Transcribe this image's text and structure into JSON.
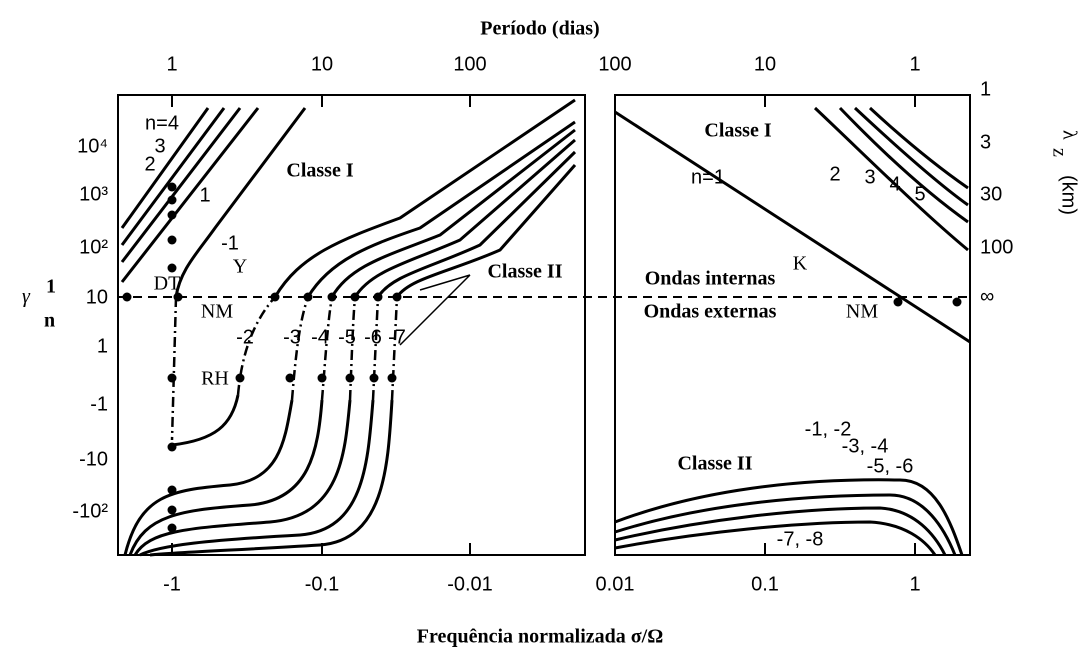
{
  "figure": {
    "top_title": "Período (dias)",
    "bottom_title": "Frequência normalizada σ/Ω",
    "y_left_title": "γ",
    "y_left_sup": "1",
    "y_left_sub": "n",
    "y_right_title": "λ",
    "y_right_sub": "z",
    "y_right_unit": "(km)",
    "top_ticks": [
      "1",
      "10",
      "100",
      "100",
      "10",
      "1"
    ],
    "bottom_ticks": [
      "-1",
      "-0.1",
      "-0.01",
      "0.01",
      "0.1",
      "1"
    ],
    "left_ticks": [
      "10⁴",
      "10³",
      "10²",
      "10",
      "1",
      "-1",
      "-10",
      "-10²"
    ],
    "right_ticks": [
      "1",
      "3",
      "30",
      "100",
      "∞"
    ],
    "left_labels": [
      "n=4",
      "3",
      "2",
      "1",
      "-1",
      "Y",
      "Classe I",
      "DT",
      "NM",
      "RH",
      "Classe II",
      "-2",
      "-3",
      "-4",
      "-5",
      "-6",
      "-7"
    ],
    "right_labels": [
      "Classe I",
      "n=1",
      "2",
      "3",
      "4",
      "5",
      "K",
      "Ondas internas",
      "Ondas externas",
      "NM",
      "Classe II",
      "-1, -2",
      "-3, -4",
      "-5, -6",
      "-7, -8"
    ]
  }
}
